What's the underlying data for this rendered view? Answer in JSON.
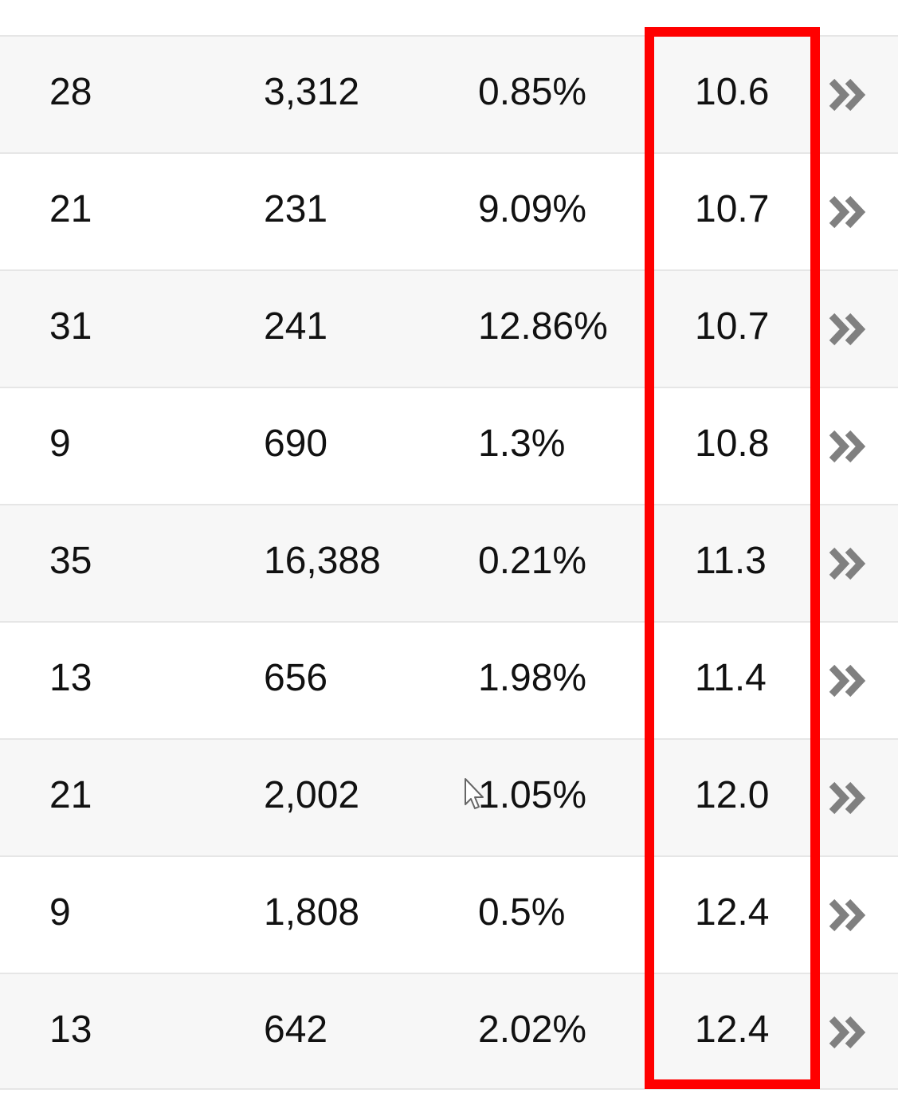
{
  "table": {
    "rows": [
      {
        "col1": "28",
        "col2": "3,312",
        "col3": "0.85%",
        "col4": "10.6",
        "action_icon": "double-chevron-right-icon"
      },
      {
        "col1": "21",
        "col2": "231",
        "col3": "9.09%",
        "col4": "10.7",
        "action_icon": "double-chevron-right-icon"
      },
      {
        "col1": "31",
        "col2": "241",
        "col3": "12.86%",
        "col4": "10.7",
        "action_icon": "double-chevron-right-icon"
      },
      {
        "col1": "9",
        "col2": "690",
        "col3": "1.3%",
        "col4": "10.8",
        "action_icon": "double-chevron-right-icon"
      },
      {
        "col1": "35",
        "col2": "16,388",
        "col3": "0.21%",
        "col4": "11.3",
        "action_icon": "double-chevron-right-icon"
      },
      {
        "col1": "13",
        "col2": "656",
        "col3": "1.98%",
        "col4": "11.4",
        "action_icon": "double-chevron-right-icon"
      },
      {
        "col1": "21",
        "col2": "2,002",
        "col3": "1.05%",
        "col4": "12.0",
        "action_icon": "double-chevron-right-icon"
      },
      {
        "col1": "9",
        "col2": "1,808",
        "col3": "0.5%",
        "col4": "12.4",
        "action_icon": "double-chevron-right-icon"
      },
      {
        "col1": "13",
        "col2": "642",
        "col3": "2.02%",
        "col4": "12.4",
        "action_icon": "double-chevron-right-icon"
      }
    ]
  },
  "colors": {
    "row_stripe": "#f7f7f7",
    "row_border": "#e6e6e6",
    "highlight": "#ff0000",
    "chevron": "#808080"
  },
  "overlay": {
    "highlight_box": "column-4 highlight",
    "cursor_icon": "arrow-cursor-icon"
  }
}
